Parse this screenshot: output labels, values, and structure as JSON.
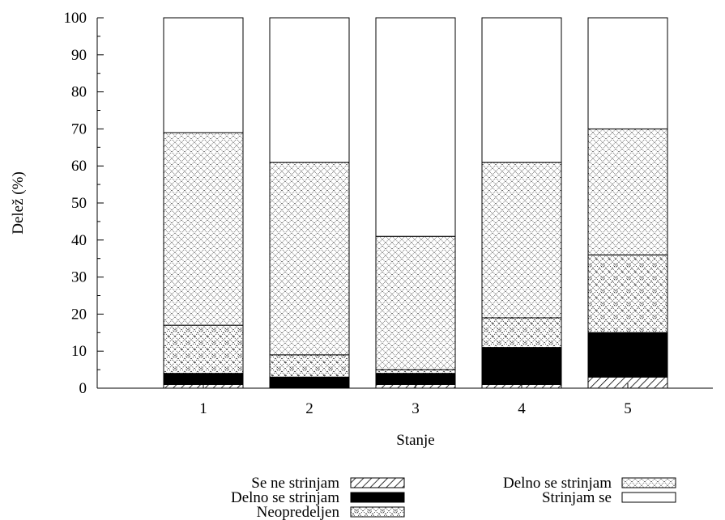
{
  "chart_data": {
    "type": "bar",
    "stacked": true,
    "xlabel": "Stanje",
    "ylabel": "Delež (%)",
    "ylim": [
      0,
      100
    ],
    "yticks": [
      0,
      10,
      20,
      30,
      40,
      50,
      60,
      70,
      80,
      90,
      100
    ],
    "categories": [
      "1",
      "2",
      "3",
      "4",
      "5"
    ],
    "series": [
      {
        "name": "Se ne strinjam",
        "pattern": "diagonal-hatch",
        "values": [
          1,
          0,
          1,
          1,
          3
        ]
      },
      {
        "name": "Delno se strinjam",
        "pattern": "solid-black",
        "values": [
          3,
          3,
          3,
          10,
          12
        ]
      },
      {
        "name": "Neopredeljen",
        "pattern": "dense-dotted-diamond",
        "values": [
          13,
          6,
          1,
          8,
          21
        ]
      },
      {
        "name": "Delno se strinjam",
        "pattern": "crosshatch-dotted",
        "values": [
          52,
          52,
          36,
          42,
          34
        ]
      },
      {
        "name": "Strinjam se",
        "pattern": "white",
        "values": [
          31,
          39,
          59,
          39,
          30
        ]
      }
    ],
    "legend": {
      "placement": "bottom",
      "columns": 2
    },
    "grid": false
  }
}
